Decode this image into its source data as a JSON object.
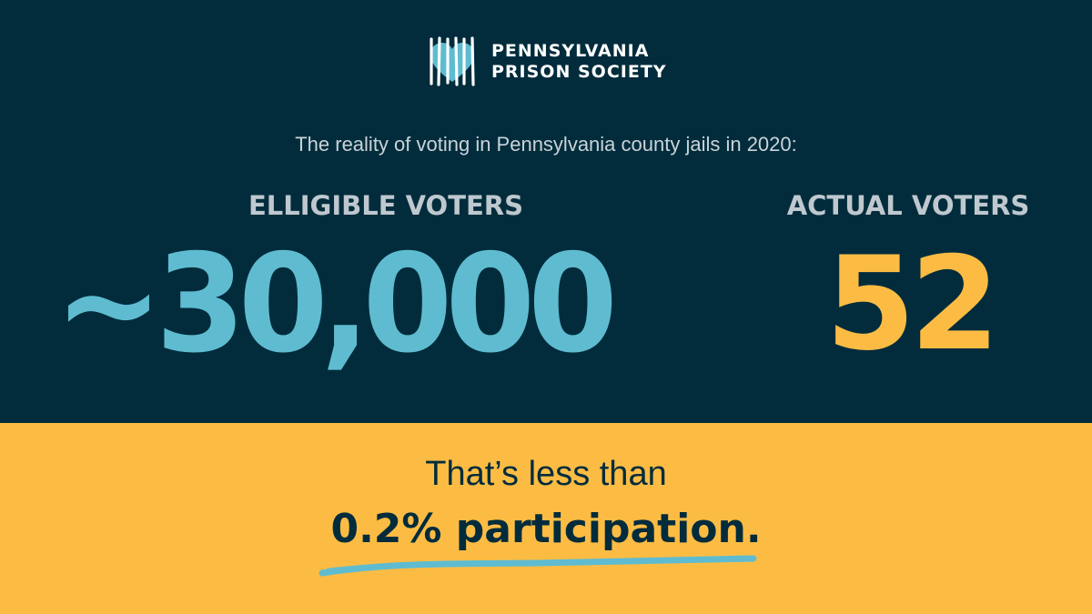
{
  "logo": {
    "line1": "PENNSYLVANIA",
    "line2": "PRISON SOCIETY",
    "icon": "heart-behind-bars-icon"
  },
  "subtitle": "The reality of voting in Pennsylvania county jails in 2020:",
  "stats": {
    "eligible": {
      "label": "ELLIGIBLE VOTERS",
      "value": "~30,000"
    },
    "actual": {
      "label": "ACTUAL VOTERS",
      "value": "52"
    }
  },
  "note": {
    "line1": "That’s less than",
    "line2": "0.2% participation."
  },
  "colors": {
    "navy": "#022c3c",
    "yellow": "#fcbc44",
    "teal": "#5fbcd0",
    "label_gray": "#bfc8cf"
  }
}
